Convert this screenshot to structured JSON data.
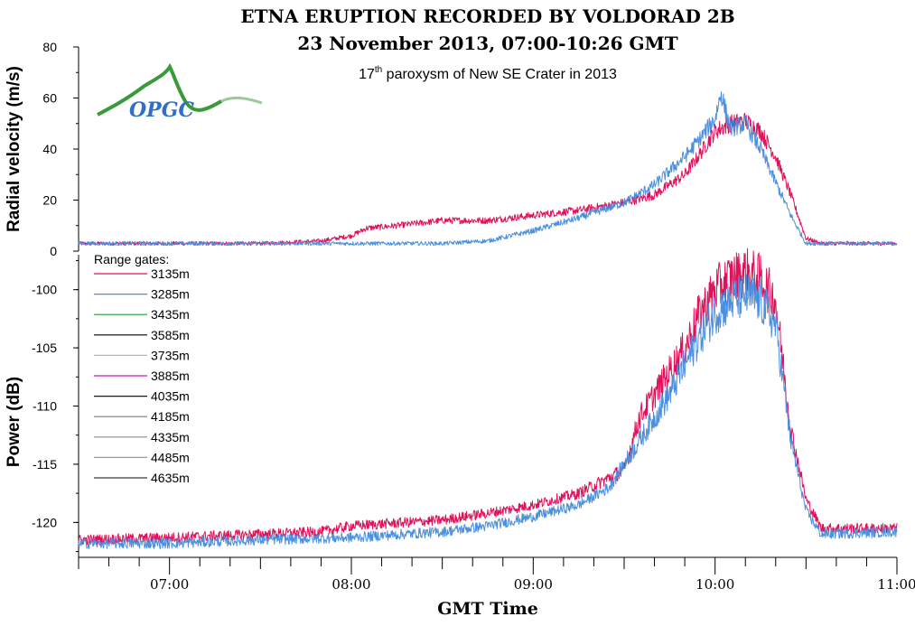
{
  "colors": {
    "logo_blue": "#2f6fc6",
    "logo_green": "#3a9a3a"
  },
  "logo": {
    "text": "OPGC",
    "icon": "volcano-logo-icon"
  },
  "chart_data": [
    {
      "type": "line",
      "id": "velocity",
      "title": "ETNA ERUPTION RECORDED BY VOLDORAD 2B",
      "subtitle": "23 November 2013, 07:00-10:26 GMT",
      "annotation": {
        "main": "17",
        "sup": "th",
        "rest": " paroxysm of New SE Crater in 2013"
      },
      "xlabel": "GMT Time",
      "ylabel": "Radial velocity (m/s)",
      "xlim": [
        "06:30",
        "11:00"
      ],
      "ylim": [
        0,
        80
      ],
      "yticks": [
        0,
        20,
        40,
        60,
        80
      ],
      "grid": false,
      "series": [
        {
          "name": "3135m",
          "color": "#e0105a",
          "points": [
            [
              "06:30",
              3
            ],
            [
              "06:50",
              3
            ],
            [
              "07:00",
              3
            ],
            [
              "07:30",
              3
            ],
            [
              "07:50",
              4
            ],
            [
              "08:00",
              6
            ],
            [
              "08:05",
              9
            ],
            [
              "08:15",
              10
            ],
            [
              "08:30",
              12
            ],
            [
              "08:45",
              12
            ],
            [
              "09:00",
              14
            ],
            [
              "09:15",
              16
            ],
            [
              "09:30",
              19
            ],
            [
              "09:40",
              22
            ],
            [
              "09:50",
              30
            ],
            [
              "09:55",
              38
            ],
            [
              "10:00",
              47
            ],
            [
              "10:05",
              50
            ],
            [
              "10:10",
              51
            ],
            [
              "10:15",
              47
            ],
            [
              "10:20",
              37
            ],
            [
              "10:25",
              22
            ],
            [
              "10:30",
              5
            ],
            [
              "10:35",
              3
            ],
            [
              "11:00",
              3
            ]
          ]
        },
        {
          "name": "3285m",
          "color": "#4a8fe0",
          "points": [
            [
              "06:30",
              3
            ],
            [
              "07:00",
              3
            ],
            [
              "07:30",
              3
            ],
            [
              "08:00",
              3
            ],
            [
              "08:30",
              3
            ],
            [
              "08:45",
              4
            ],
            [
              "09:00",
              8
            ],
            [
              "09:15",
              13
            ],
            [
              "09:30",
              19
            ],
            [
              "09:40",
              26
            ],
            [
              "09:50",
              37
            ],
            [
              "09:55",
              44
            ],
            [
              "10:00",
              52
            ],
            [
              "10:02",
              62
            ],
            [
              "10:05",
              48
            ],
            [
              "10:10",
              50
            ],
            [
              "10:15",
              40
            ],
            [
              "10:20",
              27
            ],
            [
              "10:25",
              14
            ],
            [
              "10:30",
              3
            ],
            [
              "11:00",
              3
            ]
          ]
        }
      ]
    },
    {
      "type": "line",
      "id": "power",
      "xlabel": "GMT Time",
      "ylabel": "Power (dB)",
      "xlim": [
        "06:30",
        "11:00"
      ],
      "ylim": [
        -123,
        -97
      ],
      "yticks": [
        -120,
        -115,
        -110,
        -105,
        -100
      ],
      "xticks": [
        "07:00",
        "08:00",
        "09:00",
        "10:00",
        "11:00"
      ],
      "grid": false,
      "legend": {
        "title": "Range gates:",
        "placement": "top-left",
        "entries": [
          {
            "label": "3135m",
            "color": "#e0105a"
          },
          {
            "label": "3285m",
            "color": "#4a8fe0"
          },
          {
            "label": "3435m",
            "color": "#2a9a3a"
          },
          {
            "label": "3585m",
            "color": "#000000"
          },
          {
            "label": "3735m",
            "color": "#b8b8b8"
          },
          {
            "label": "3885m",
            "color": "#c020c0"
          },
          {
            "label": "4035m",
            "color": "#1a1a1a"
          },
          {
            "label": "4185m",
            "color": "#7a7a7a"
          },
          {
            "label": "4335m",
            "color": "#8a8a8a"
          },
          {
            "label": "4485m",
            "color": "#9a9a9a"
          },
          {
            "label": "4635m",
            "color": "#3a3a3a"
          }
        ]
      },
      "series": [
        {
          "name": "3135m",
          "color": "#e0105a",
          "points": [
            [
              "06:30",
              -121.5
            ],
            [
              "07:00",
              -121.3
            ],
            [
              "07:30",
              -121
            ],
            [
              "07:50",
              -120.8
            ],
            [
              "08:00",
              -120.3
            ],
            [
              "08:30",
              -119.8
            ],
            [
              "08:45",
              -119.2
            ],
            [
              "09:00",
              -118.5
            ],
            [
              "09:15",
              -117.5
            ],
            [
              "09:30",
              -115.5
            ],
            [
              "09:35",
              -111
            ],
            [
              "09:40",
              -109
            ],
            [
              "09:45",
              -107
            ],
            [
              "09:50",
              -105
            ],
            [
              "09:55",
              -102
            ],
            [
              "10:00",
              -100
            ],
            [
              "10:05",
              -99
            ],
            [
              "10:10",
              -98.5
            ],
            [
              "10:15",
              -99
            ],
            [
              "10:20",
              -101
            ],
            [
              "10:25",
              -112
            ],
            [
              "10:30",
              -118
            ],
            [
              "10:35",
              -120.5
            ],
            [
              "11:00",
              -120.5
            ]
          ]
        },
        {
          "name": "3285m",
          "color": "#4a8fe0",
          "points": [
            [
              "06:30",
              -121.8
            ],
            [
              "07:00",
              -121.8
            ],
            [
              "07:30",
              -121.5
            ],
            [
              "08:00",
              -121.3
            ],
            [
              "08:30",
              -120.8
            ],
            [
              "08:45",
              -120.3
            ],
            [
              "09:00",
              -119.5
            ],
            [
              "09:15",
              -118.5
            ],
            [
              "09:25",
              -117
            ],
            [
              "09:35",
              -113
            ],
            [
              "09:45",
              -109
            ],
            [
              "09:50",
              -106.5
            ],
            [
              "09:55",
              -104
            ],
            [
              "10:00",
              -102
            ],
            [
              "10:05",
              -101
            ],
            [
              "10:10",
              -100.5
            ],
            [
              "10:15",
              -101
            ],
            [
              "10:20",
              -103
            ],
            [
              "10:25",
              -113
            ],
            [
              "10:30",
              -119
            ],
            [
              "10:35",
              -121
            ],
            [
              "11:00",
              -120.8
            ]
          ]
        }
      ]
    }
  ]
}
